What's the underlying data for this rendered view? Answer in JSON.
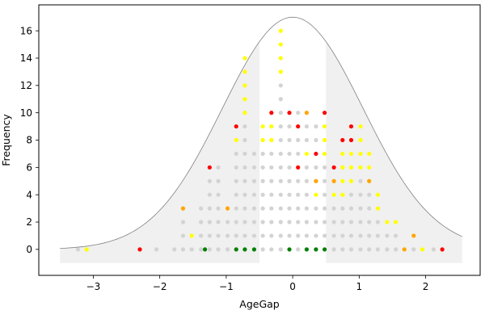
{
  "chart_data": {
    "type": "scatter",
    "title": "",
    "xlabel": "AgeGap",
    "ylabel": "Frequency",
    "xlim": [
      -3.82,
      2.82
    ],
    "ylim": [
      -1.9,
      17.9
    ],
    "x_ticks": [
      -3,
      -2,
      -1,
      0,
      1,
      2
    ],
    "x_tick_labels": [
      "−3",
      "−2",
      "−1",
      "0",
      "1",
      "2"
    ],
    "y_ticks": [
      0,
      2,
      4,
      6,
      8,
      10,
      12,
      14,
      16
    ],
    "y_tick_labels": [
      "0",
      "2",
      "4",
      "6",
      "8",
      "10",
      "12",
      "14",
      "16"
    ],
    "grid": false,
    "legend": "none",
    "colors": {
      "grey": "#d3d3d3",
      "yellow": "#ffff00",
      "orange": "#ffa500",
      "red": "#ff0000",
      "green": "#008000",
      "curve": "#808080",
      "band": "#f0f0f0"
    },
    "curve": {
      "type": "normal",
      "mean": 0,
      "peak": 17,
      "sigma": 1.06,
      "x_start": -3.5,
      "x_end": 2.55
    },
    "shaded_regions": [
      {
        "x0": -3.5,
        "x1": -0.5,
        "y_bottom": -1
      },
      {
        "x0": 0.5,
        "x1": 2.55,
        "y_bottom": -1
      }
    ],
    "columns": [
      {
        "x": -3.23,
        "colors": [
          "grey"
        ]
      },
      {
        "x": -3.1,
        "colors": [
          "yellow"
        ]
      },
      {
        "x": -2.3,
        "colors": [
          "red"
        ]
      },
      {
        "x": -2.05,
        "colors": [
          "grey"
        ]
      },
      {
        "x": -1.78,
        "colors": [
          "grey"
        ]
      },
      {
        "x": -1.65,
        "colors": [
          "grey",
          "grey",
          "grey",
          "orange"
        ]
      },
      {
        "x": -1.52,
        "colors": [
          "grey",
          "yellow"
        ]
      },
      {
        "x": -1.38,
        "colors": [
          "grey",
          "grey",
          "grey",
          "grey"
        ]
      },
      {
        "x": -1.32,
        "colors": [
          "green"
        ]
      },
      {
        "x": -1.25,
        "colors": [
          "grey",
          "grey",
          "grey",
          "grey",
          "grey",
          "grey",
          "red"
        ]
      },
      {
        "x": -1.12,
        "colors": [
          "grey",
          "grey",
          "grey",
          "grey",
          "grey",
          "grey",
          "grey"
        ]
      },
      {
        "x": -0.98,
        "colors": [
          "grey",
          "grey",
          "grey",
          "orange"
        ]
      },
      {
        "x": -0.85,
        "colors": [
          "green",
          "grey",
          "grey",
          "grey",
          "grey",
          "grey",
          "grey",
          "grey",
          "yellow",
          "red"
        ]
      },
      {
        "x": -0.72,
        "colors": [
          "green",
          "grey",
          "grey",
          "grey",
          "grey",
          "grey",
          "grey",
          "grey",
          "grey",
          "grey",
          "yellow",
          "yellow",
          "yellow",
          "yellow",
          "yellow"
        ]
      },
      {
        "x": -0.58,
        "colors": [
          "green",
          "grey",
          "grey",
          "grey",
          "grey",
          "grey",
          "grey",
          "grey"
        ]
      },
      {
        "x": -0.45,
        "colors": [
          "grey",
          "grey",
          "grey",
          "grey",
          "grey",
          "grey",
          "grey",
          "grey",
          "yellow",
          "yellow"
        ]
      },
      {
        "x": -0.32,
        "colors": [
          "grey",
          "grey",
          "grey",
          "grey",
          "grey",
          "grey",
          "grey",
          "grey",
          "yellow",
          "yellow",
          "red"
        ]
      },
      {
        "x": -0.18,
        "colors": [
          "grey",
          "grey",
          "grey",
          "grey",
          "grey",
          "grey",
          "grey",
          "grey",
          "grey",
          "grey",
          "grey",
          "grey",
          "grey",
          "yellow",
          "yellow",
          "yellow",
          "yellow"
        ]
      },
      {
        "x": -0.05,
        "colors": [
          "green",
          "grey",
          "grey",
          "grey",
          "grey",
          "grey",
          "grey",
          "grey",
          "grey",
          "grey",
          "red"
        ]
      },
      {
        "x": 0.08,
        "colors": [
          "grey",
          "grey",
          "grey",
          "grey",
          "grey",
          "grey",
          "red",
          "grey",
          "grey",
          "red",
          "grey"
        ]
      },
      {
        "x": 0.21,
        "colors": [
          "green",
          "grey",
          "grey",
          "grey",
          "grey",
          "grey",
          "grey",
          "yellow",
          "grey",
          "grey",
          "orange"
        ]
      },
      {
        "x": 0.35,
        "colors": [
          "green",
          "grey",
          "grey",
          "grey",
          "yellow",
          "orange",
          "grey",
          "red",
          "grey",
          "grey"
        ]
      },
      {
        "x": 0.48,
        "colors": [
          "green",
          "grey",
          "grey",
          "grey",
          "grey",
          "grey",
          "grey",
          "yellow",
          "yellow",
          "yellow",
          "red"
        ]
      },
      {
        "x": 0.62,
        "colors": [
          "grey",
          "grey",
          "grey",
          "grey",
          "yellow",
          "orange",
          "red"
        ]
      },
      {
        "x": 0.75,
        "colors": [
          "grey",
          "grey",
          "grey",
          "grey",
          "yellow",
          "yellow",
          "yellow",
          "yellow",
          "red"
        ]
      },
      {
        "x": 0.88,
        "colors": [
          "grey",
          "grey",
          "grey",
          "grey",
          "grey",
          "yellow",
          "yellow",
          "yellow",
          "red",
          "red"
        ]
      },
      {
        "x": 1.02,
        "colors": [
          "grey",
          "grey",
          "grey",
          "grey",
          "grey",
          "grey",
          "yellow",
          "yellow",
          "yellow",
          "yellow"
        ]
      },
      {
        "x": 1.15,
        "colors": [
          "grey",
          "grey",
          "grey",
          "grey",
          "grey",
          "orange",
          "yellow",
          "yellow"
        ]
      },
      {
        "x": 1.28,
        "colors": [
          "grey",
          "grey",
          "grey",
          "yellow",
          "yellow"
        ]
      },
      {
        "x": 1.42,
        "colors": [
          "grey",
          "grey",
          "yellow"
        ]
      },
      {
        "x": 1.55,
        "colors": [
          "grey",
          "grey",
          "yellow"
        ]
      },
      {
        "x": 1.68,
        "colors": [
          "orange"
        ]
      },
      {
        "x": 1.82,
        "colors": [
          "grey",
          "orange"
        ]
      },
      {
        "x": 1.95,
        "colors": [
          "yellow"
        ]
      },
      {
        "x": 2.12,
        "colors": [
          "grey"
        ]
      },
      {
        "x": 2.25,
        "colors": [
          "red"
        ]
      }
    ]
  }
}
